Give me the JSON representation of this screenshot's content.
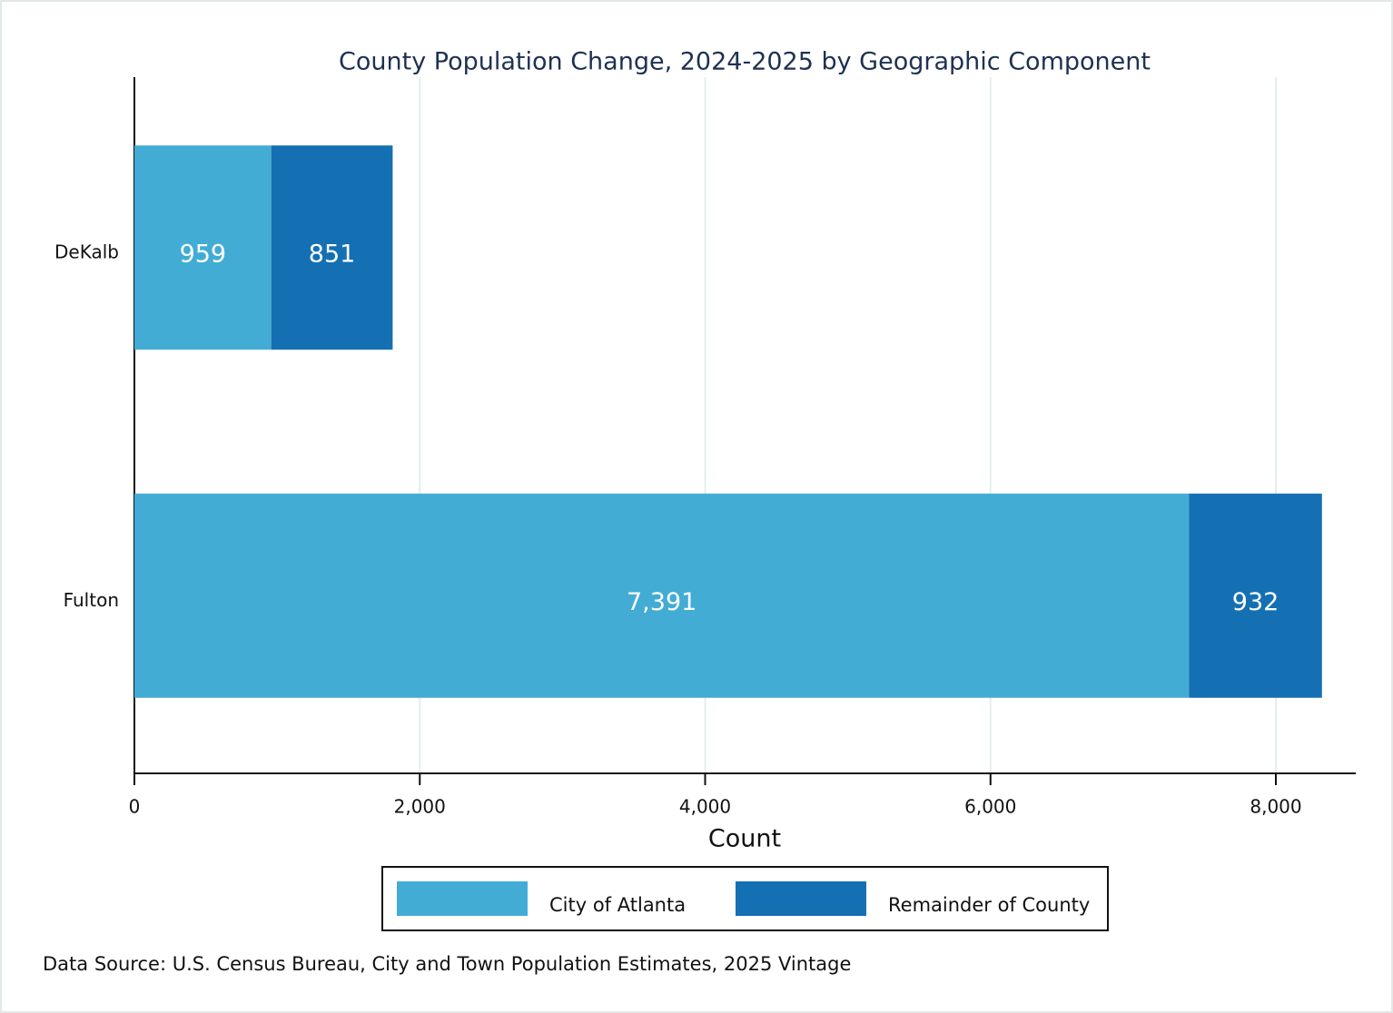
{
  "chart_data": {
    "type": "bar",
    "orientation": "horizontal",
    "stacked": true,
    "title": "County Population Change, 2024-2025 by Geographic Component",
    "x_label": "Count",
    "note": "Data Source: U.S. Census Bureau, City and Town Population Estimates, 2025 Vintage",
    "categories": [
      "DeKalb",
      "Fulton"
    ],
    "series": [
      {
        "name": "City of Atlanta",
        "color": "#42acd4",
        "values": [
          959,
          7391
        ],
        "value_labels": [
          "959",
          "7,391"
        ]
      },
      {
        "name": "Remainder of County",
        "color": "#1470b3",
        "values": [
          851,
          932
        ]
      }
    ],
    "xlim": [
      0,
      8560
    ],
    "xticks": [
      0,
      {
        "value": 2000,
        "label": "2,000"
      },
      {
        "value": 4000,
        "label": "4,000"
      },
      {
        "value": 6000,
        "label": "6,000"
      },
      {
        "value": 8000,
        "label": "8,000"
      }
    ],
    "grid": true,
    "legend": "bottom"
  }
}
